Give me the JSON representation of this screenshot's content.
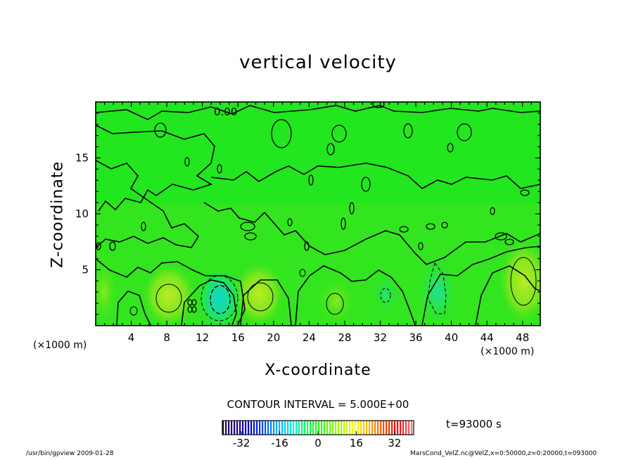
{
  "chart_data": {
    "type": "heatmap",
    "title": "vertical velocity",
    "xlabel": "X-coordinate",
    "ylabel": "Z-coordinate",
    "x_unit_left": "(×1000 m)",
    "x_unit_right": "(×1000 m)",
    "xlim": [
      0,
      50
    ],
    "ylim": [
      0,
      20
    ],
    "x_ticks": [
      4,
      8,
      12,
      16,
      20,
      24,
      28,
      32,
      36,
      40,
      44,
      48
    ],
    "y_ticks": [
      5,
      10,
      15
    ],
    "contour_label": "0.00",
    "contour_interval": "CONTOUR INTERVAL = 5.000E+00",
    "time": "t=93000 s",
    "colorbar": {
      "range": [
        -40,
        40
      ],
      "ticks": [
        -32,
        -16,
        0,
        16,
        32
      ],
      "colors": [
        "#2a0040",
        "#1a0090",
        "#0000d0",
        "#0060ff",
        "#00c0ff",
        "#00ffc0",
        "#00ff40",
        "#40ff00",
        "#a0ff00",
        "#ffff00",
        "#ffb000",
        "#ff5000",
        "#ff0000",
        "#ff8080"
      ]
    },
    "features": [
      {
        "x": 14.0,
        "z": 2.5,
        "value": -15,
        "kind": "downdraft"
      },
      {
        "x": 38.5,
        "z": 2.5,
        "value": -5,
        "kind": "downdraft"
      },
      {
        "x": 7.5,
        "z": 2.5,
        "value": 8,
        "kind": "updraft"
      },
      {
        "x": 18.5,
        "z": 2.5,
        "value": 8,
        "kind": "updraft"
      },
      {
        "x": 27.0,
        "z": 2.0,
        "value": 6,
        "kind": "updraft"
      },
      {
        "x": 48.5,
        "z": 3.5,
        "value": 9,
        "kind": "updraft"
      }
    ]
  },
  "footer": {
    "left": "/usr/bin/gpview   2009-01-28",
    "right": "MarsCond_VelZ.nc@VelZ,x=0:50000,z=0:20000,t=093000"
  },
  "colors": {
    "field": "#1ee61e",
    "axis": "#000000"
  }
}
